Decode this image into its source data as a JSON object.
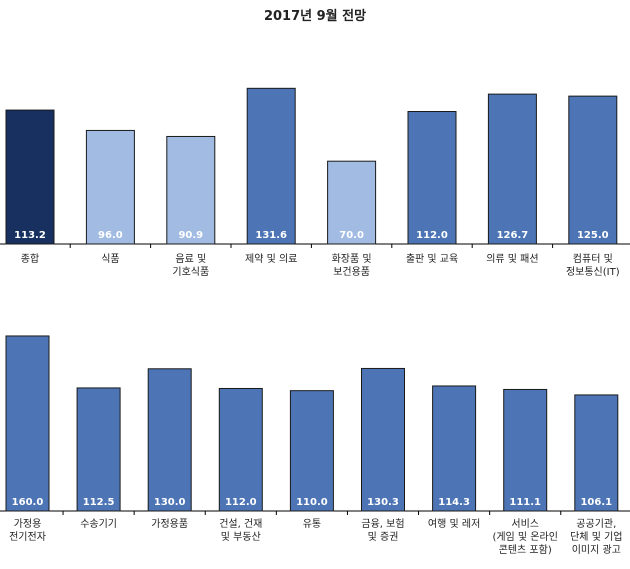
{
  "title": "2017년 9월 전망",
  "colors": {
    "dark": "#17305f",
    "light": "#a1bbe2",
    "mid": "#4d75b5",
    "axis": "#000000",
    "label_text": "#ffffff"
  },
  "chart_data": [
    {
      "type": "bar",
      "categories": [
        [
          "종합"
        ],
        [
          "식품"
        ],
        [
          "음료 및",
          "기호식품"
        ],
        [
          "제약 및 의료"
        ],
        [
          "화장품 및",
          "보건용품"
        ],
        [
          "출판 및 교육"
        ],
        [
          "의류 및 패션"
        ],
        [
          "컴퓨터 및",
          "정보통신(IT)"
        ]
      ],
      "values": [
        113.2,
        96.0,
        90.9,
        131.6,
        70.0,
        112.0,
        126.7,
        125.0
      ],
      "value_labels": [
        "113.2",
        "96.0",
        "90.9",
        "131.6",
        "70.0",
        "112.0",
        "126.7",
        "125.0"
      ],
      "colors": [
        "dark",
        "light",
        "light",
        "mid",
        "light",
        "mid",
        "mid",
        "mid"
      ]
    },
    {
      "type": "bar",
      "categories": [
        [
          "가정용",
          "전기전자"
        ],
        [
          "수송기기"
        ],
        [
          "가정용품"
        ],
        [
          "건설, 건재",
          "및 부동산"
        ],
        [
          "유통"
        ],
        [
          "금융, 보험",
          "및 증권"
        ],
        [
          "여행 및 레저"
        ],
        [
          "서비스",
          "(게임 및 온라인",
          "콘텐츠 포함)"
        ],
        [
          "공공기관,",
          "단체 및 기업",
          "이미지 광고"
        ]
      ],
      "values": [
        160.0,
        112.5,
        130.0,
        112.0,
        110.0,
        130.3,
        114.3,
        111.1,
        106.1
      ],
      "value_labels": [
        "160.0",
        "112.5",
        "130.0",
        "112.0",
        "110.0",
        "130.3",
        "114.3",
        "111.1",
        "106.1"
      ],
      "colors": [
        "mid",
        "mid",
        "mid",
        "mid",
        "mid",
        "mid",
        "mid",
        "mid",
        "mid"
      ]
    }
  ]
}
